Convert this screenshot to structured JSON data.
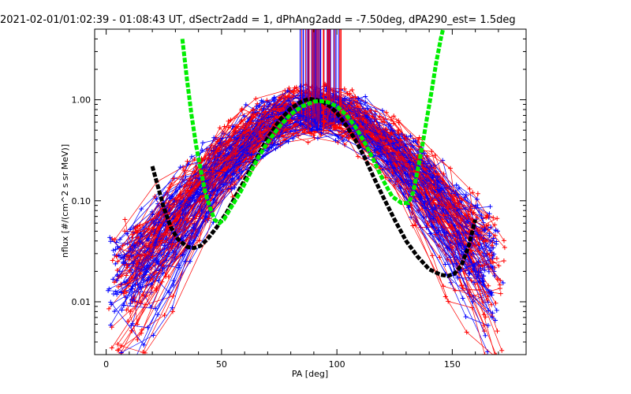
{
  "chart_data": {
    "type": "line",
    "title": "2021-02-01/01:02:39 - 01:08:43 UT, dSectr2add = 1, dPhAng2add = -7.50deg, dPA290_est=   1.5deg",
    "xlabel": "PA [deg]",
    "ylabel": "nflux [#/(cm^2 s sr MeV)]",
    "xlim": [
      -5,
      182
    ],
    "ylim": [
      0.003,
      5.0
    ],
    "yscale": "log",
    "grid": false,
    "xticks": [
      0,
      50,
      100,
      150
    ],
    "xtick_labels": [
      "0",
      "50",
      "100",
      "150"
    ],
    "yticks": [
      0.01,
      0.1,
      1.0
    ],
    "ytick_labels": [
      "0.01",
      "0.10",
      "1.00"
    ],
    "colors": {
      "red_sector": "#ff0000",
      "blue_sector": "#0000ff",
      "black_fit": "#000000",
      "green_fit": "#00ee00"
    },
    "series": [
      {
        "color": "#000000",
        "style": "thick-dashed",
        "x": [
          20,
          22,
          25,
          28,
          31,
          35,
          38,
          41,
          44,
          48,
          52,
          56,
          60,
          65,
          70,
          75,
          80,
          85,
          88,
          91,
          94,
          97,
          100,
          104,
          108,
          112,
          116,
          120,
          125,
          130,
          135,
          140,
          145,
          148,
          151,
          154,
          157,
          160
        ],
        "y": [
          0.22,
          0.15,
          0.085,
          0.055,
          0.042,
          0.035,
          0.034,
          0.036,
          0.042,
          0.055,
          0.075,
          0.11,
          0.16,
          0.26,
          0.42,
          0.62,
          0.82,
          0.97,
          1.02,
          1.0,
          0.95,
          0.86,
          0.74,
          0.56,
          0.4,
          0.27,
          0.17,
          0.11,
          0.065,
          0.04,
          0.028,
          0.021,
          0.0185,
          0.018,
          0.019,
          0.023,
          0.035,
          0.065
        ]
      },
      {
        "color": "#00ee00",
        "style": "thick-dashed",
        "x": [
          33,
          35,
          37,
          39,
          41,
          43,
          45,
          47,
          49,
          51,
          54,
          58,
          62,
          66,
          70,
          75,
          80,
          85,
          90,
          93,
          96,
          100,
          104,
          108,
          112,
          116,
          120,
          124,
          128,
          131,
          133,
          135,
          137,
          139,
          141,
          143,
          145,
          146
        ],
        "y": [
          4.0,
          1.6,
          0.7,
          0.35,
          0.2,
          0.12,
          0.085,
          0.065,
          0.06,
          0.065,
          0.085,
          0.12,
          0.18,
          0.27,
          0.38,
          0.54,
          0.72,
          0.86,
          0.96,
          0.97,
          0.95,
          0.86,
          0.71,
          0.54,
          0.38,
          0.25,
          0.16,
          0.11,
          0.095,
          0.095,
          0.12,
          0.2,
          0.35,
          0.65,
          1.2,
          2.3,
          4.0,
          5.0
        ]
      }
    ]
  }
}
